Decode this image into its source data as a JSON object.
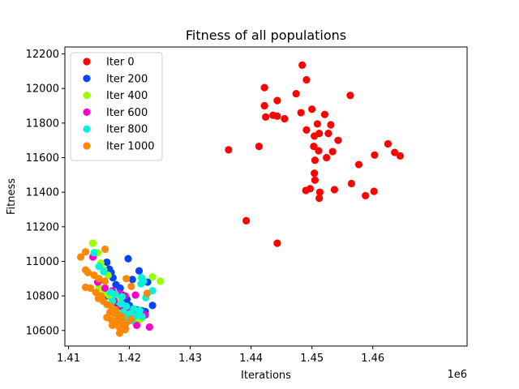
{
  "chart_data": {
    "type": "scatter",
    "title": "Fitness of all populations",
    "xlabel": "Iterations",
    "ylabel": "Fitness",
    "x_offset_label": "1e6",
    "xlim": [
      1.4094,
      1.4755
    ],
    "ylim": [
      10510,
      12240
    ],
    "xticks": [
      1.41,
      1.42,
      1.43,
      1.44,
      1.45,
      1.46
    ],
    "xtick_labels": [
      "1.41",
      "1.42",
      "1.43",
      "1.44",
      "1.45",
      "1.46"
    ],
    "yticks": [
      10600,
      10800,
      11000,
      11200,
      11400,
      11600,
      11800,
      12000,
      12200
    ],
    "ytick_labels": [
      "10600",
      "10800",
      "11000",
      "11200",
      "11400",
      "11600",
      "11800",
      "12000",
      "12200"
    ],
    "legend_position": "upper-left",
    "series": [
      {
        "name": "Iter 0",
        "color": "#ff0000",
        "points": [
          [
            1.4484,
            12135
          ],
          [
            1.4491,
            12050
          ],
          [
            1.4422,
            12005
          ],
          [
            1.4443,
            11930
          ],
          [
            1.4422,
            11900
          ],
          [
            1.4563,
            11960
          ],
          [
            1.4474,
            11970
          ],
          [
            1.45,
            11880
          ],
          [
            1.4482,
            11860
          ],
          [
            1.4521,
            11850
          ],
          [
            1.4436,
            11845
          ],
          [
            1.4424,
            11835
          ],
          [
            1.4443,
            11840
          ],
          [
            1.4455,
            11825
          ],
          [
            1.4509,
            11795
          ],
          [
            1.4531,
            11790
          ],
          [
            1.4491,
            11760
          ],
          [
            1.4512,
            11740
          ],
          [
            1.4527,
            11740
          ],
          [
            1.4504,
            11725
          ],
          [
            1.4543,
            11700
          ],
          [
            1.4503,
            11665
          ],
          [
            1.4511,
            11640
          ],
          [
            1.4534,
            11635
          ],
          [
            1.4625,
            11680
          ],
          [
            1.4636,
            11630
          ],
          [
            1.4645,
            11610
          ],
          [
            1.4603,
            11615
          ],
          [
            1.4524,
            11600
          ],
          [
            1.4505,
            11585
          ],
          [
            1.4577,
            11560
          ],
          [
            1.4363,
            11645
          ],
          [
            1.4413,
            11665
          ],
          [
            1.4504,
            11510
          ],
          [
            1.4505,
            11470
          ],
          [
            1.4565,
            11450
          ],
          [
            1.4497,
            11420
          ],
          [
            1.449,
            11410
          ],
          [
            1.4537,
            11415
          ],
          [
            1.4513,
            11400
          ],
          [
            1.4512,
            11365
          ],
          [
            1.4588,
            11380
          ],
          [
            1.4602,
            11405
          ],
          [
            1.4392,
            11235
          ],
          [
            1.4443,
            11105
          ]
        ]
      },
      {
        "name": "Iter 200",
        "color": "#0044ff",
        "points": [
          [
            1.4198,
            11015
          ],
          [
            1.4163,
            10995
          ],
          [
            1.4167,
            10955
          ],
          [
            1.417,
            10935
          ],
          [
            1.4216,
            10945
          ],
          [
            1.4173,
            10905
          ],
          [
            1.4205,
            10895
          ],
          [
            1.423,
            10880
          ],
          [
            1.4178,
            10865
          ],
          [
            1.4185,
            10845
          ],
          [
            1.4172,
            10825
          ],
          [
            1.4189,
            10805
          ],
          [
            1.4165,
            10800
          ],
          [
            1.4196,
            10780
          ],
          [
            1.4184,
            10765
          ],
          [
            1.418,
            10755
          ],
          [
            1.42,
            10745
          ],
          [
            1.4238,
            10745
          ],
          [
            1.4193,
            10735
          ],
          [
            1.4204,
            10725
          ],
          [
            1.4212,
            10720
          ],
          [
            1.422,
            10715
          ],
          [
            1.4226,
            10710
          ],
          [
            1.4188,
            10700
          ],
          [
            1.4197,
            10685
          ],
          [
            1.4212,
            10690
          ],
          [
            1.4192,
            10670
          ]
        ]
      },
      {
        "name": "Iter 400",
        "color": "#99ff00",
        "points": [
          [
            1.414,
            11105
          ],
          [
            1.4148,
            11050
          ],
          [
            1.4153,
            10990
          ],
          [
            1.4158,
            10950
          ],
          [
            1.4165,
            10920
          ],
          [
            1.4238,
            10910
          ],
          [
            1.4251,
            10885
          ],
          [
            1.415,
            10850
          ],
          [
            1.4158,
            10820
          ],
          [
            1.4166,
            10805
          ],
          [
            1.417,
            10795
          ],
          [
            1.4175,
            10780
          ],
          [
            1.418,
            10770
          ],
          [
            1.4185,
            10760
          ],
          [
            1.419,
            10740
          ],
          [
            1.4182,
            10720
          ],
          [
            1.4193,
            10700
          ],
          [
            1.4203,
            10690
          ],
          [
            1.4212,
            10680
          ],
          [
            1.422,
            10670
          ],
          [
            1.4187,
            10660
          ],
          [
            1.4196,
            10650
          ],
          [
            1.4206,
            10655
          ],
          [
            1.4216,
            10660
          ]
        ]
      },
      {
        "name": "Iter 600",
        "color": "#ff00cc",
        "points": [
          [
            1.414,
            11025
          ],
          [
            1.4148,
            10880
          ],
          [
            1.416,
            10845
          ],
          [
            1.4172,
            10830
          ],
          [
            1.4183,
            10815
          ],
          [
            1.4193,
            10800
          ],
          [
            1.421,
            10805
          ],
          [
            1.4175,
            10770
          ],
          [
            1.4186,
            10740
          ],
          [
            1.4196,
            10720
          ],
          [
            1.4206,
            10705
          ],
          [
            1.4226,
            10690
          ],
          [
            1.4192,
            10675
          ],
          [
            1.4201,
            10660
          ],
          [
            1.4212,
            10630
          ],
          [
            1.4233,
            10620
          ],
          [
            1.418,
            10640
          ],
          [
            1.4193,
            10610
          ]
        ]
      },
      {
        "name": "Iter 800",
        "color": "#00f5d8",
        "points": [
          [
            1.4142,
            11050
          ],
          [
            1.415,
            10970
          ],
          [
            1.4158,
            10940
          ],
          [
            1.422,
            10905
          ],
          [
            1.4223,
            10885
          ],
          [
            1.4219,
            10870
          ],
          [
            1.4238,
            10830
          ],
          [
            1.4169,
            10820
          ],
          [
            1.4177,
            10810
          ],
          [
            1.4188,
            10795
          ],
          [
            1.4227,
            10790
          ],
          [
            1.4172,
            10770
          ],
          [
            1.4186,
            10755
          ],
          [
            1.4195,
            10740
          ],
          [
            1.4207,
            10725
          ],
          [
            1.4217,
            10715
          ],
          [
            1.419,
            10705
          ],
          [
            1.42,
            10695
          ],
          [
            1.4181,
            10690
          ],
          [
            1.421,
            10685
          ],
          [
            1.4221,
            10680
          ],
          [
            1.4192,
            10670
          ],
          [
            1.4205,
            10660
          ],
          [
            1.4177,
            10655
          ]
        ]
      },
      {
        "name": "Iter 1000",
        "color": "#ff8800",
        "points": [
          [
            1.416,
            11070
          ],
          [
            1.4128,
            11055
          ],
          [
            1.412,
            11025
          ],
          [
            1.4128,
            10950
          ],
          [
            1.4132,
            10935
          ],
          [
            1.4142,
            10920
          ],
          [
            1.415,
            10900
          ],
          [
            1.416,
            10885
          ],
          [
            1.4128,
            10850
          ],
          [
            1.4136,
            10845
          ],
          [
            1.4145,
            10820
          ],
          [
            1.4153,
            10800
          ],
          [
            1.4149,
            10785
          ],
          [
            1.4157,
            10770
          ],
          [
            1.4163,
            10750
          ],
          [
            1.417,
            10740
          ],
          [
            1.4177,
            10720
          ],
          [
            1.4168,
            10705
          ],
          [
            1.4175,
            10700
          ],
          [
            1.4182,
            10690
          ],
          [
            1.4188,
            10680
          ],
          [
            1.4163,
            10675
          ],
          [
            1.4171,
            10660
          ],
          [
            1.4179,
            10655
          ],
          [
            1.4187,
            10650
          ],
          [
            1.4194,
            10640
          ],
          [
            1.4172,
            10630
          ],
          [
            1.4183,
            10620
          ],
          [
            1.4193,
            10605
          ],
          [
            1.4184,
            10585
          ],
          [
            1.4195,
            10900
          ],
          [
            1.4203,
            10855
          ],
          [
            1.4229,
            10815
          ],
          [
            1.4203,
            10665
          ]
        ]
      }
    ]
  }
}
